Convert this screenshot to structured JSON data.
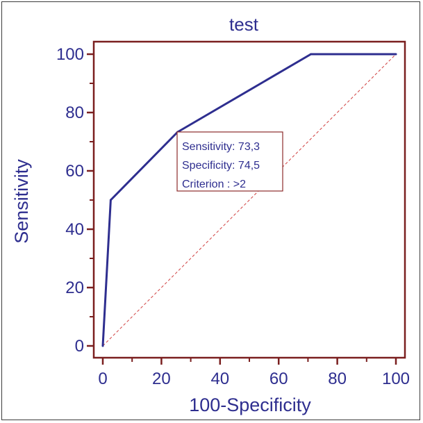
{
  "chart_data": {
    "type": "line",
    "title": "test",
    "xlabel": "100-Specificity",
    "ylabel": "Sensitivity",
    "xlim": [
      0,
      100
    ],
    "ylim": [
      0,
      100
    ],
    "x_ticks": [
      0,
      20,
      40,
      60,
      80,
      100
    ],
    "y_ticks": [
      0,
      20,
      40,
      60,
      80,
      100
    ],
    "x_tick_labels": [
      "0",
      "20",
      "40",
      "60",
      "80",
      "100"
    ],
    "y_tick_labels": [
      "0",
      "20",
      "40",
      "60",
      "80",
      "100"
    ],
    "series": [
      {
        "x": [
          0,
          2.7,
          25.5,
          71,
          100
        ],
        "y": [
          0,
          50,
          73.3,
          100,
          100
        ]
      }
    ],
    "reference_line": {
      "x": [
        0,
        100
      ],
      "y": [
        0,
        100
      ],
      "style": "dashed"
    },
    "annotation": {
      "lines": [
        "Sensitivity: 73,3",
        "Specificity: 74,5",
        "Criterion : >2"
      ],
      "anchor": {
        "x": 25.5,
        "y": 73.3
      }
    },
    "grid": false,
    "legend": "none",
    "colors": {
      "curve": "#2e2e8f",
      "axes": "#7a1f1f",
      "reference": "#d04040",
      "text": "#2e2e8f",
      "annotation_border": "#8b2a2a"
    }
  }
}
